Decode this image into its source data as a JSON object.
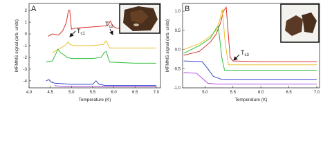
{
  "chart_data": [
    {
      "type": "line",
      "panel_label": "A",
      "xlabel": "Temperature (K)",
      "ylabel": "MFMMS signal (arb. units)",
      "xlim": [
        4.0,
        7.1
      ],
      "ylim": [
        -4.6,
        2.6
      ],
      "xticks": [
        {
          "value": 4.0,
          "label": "4.0"
        },
        {
          "value": 4.5,
          "label": "4.5"
        },
        {
          "value": 5.0,
          "label": "5.0"
        },
        {
          "value": 5.5,
          "label": "5.5"
        },
        {
          "value": 6.0,
          "label": "6.0"
        },
        {
          "value": 6.5,
          "label": "6.5"
        },
        {
          "value": 7.0,
          "label": "7.0"
        }
      ],
      "yticks": [
        -4,
        -3,
        -2,
        -1,
        0,
        1,
        2
      ],
      "annotations": [
        {
          "text": "T",
          "sub": "c1"
        },
        {
          "text": "T",
          "sub": "c2"
        }
      ],
      "series": [
        {
          "color": "#d9322b",
          "x": [
            4.45,
            4.55,
            4.7,
            4.8,
            4.88,
            4.93,
            4.96,
            5.0,
            5.1,
            5.5,
            5.85,
            5.92,
            5.97,
            6.05,
            6.5,
            7.0
          ],
          "values": [
            -0.2,
            0.0,
            -0.1,
            0.3,
            1.0,
            2.0,
            2.0,
            0.4,
            0.5,
            0.6,
            0.7,
            1.1,
            0.7,
            0.5,
            0.5,
            0.5
          ]
        },
        {
          "color": "#e8c02a",
          "x": [
            4.55,
            4.7,
            4.85,
            4.92,
            4.97,
            5.05,
            5.5,
            5.75,
            5.82,
            5.9,
            6.5,
            7.0
          ],
          "values": [
            -1.6,
            -1.3,
            -1.0,
            -0.7,
            -0.9,
            -1.0,
            -1.0,
            -0.9,
            -0.6,
            -1.2,
            -1.2,
            -1.2
          ]
        },
        {
          "color": "#2fbf3a",
          "x": [
            4.4,
            4.55,
            4.62,
            4.68,
            4.75,
            4.9,
            5.0,
            5.5,
            5.7,
            5.77,
            5.82,
            5.9,
            6.5,
            7.0
          ],
          "values": [
            -2.4,
            -2.3,
            -1.8,
            -1.3,
            -1.6,
            -2.0,
            -2.1,
            -2.1,
            -2.0,
            -1.6,
            -1.5,
            -2.4,
            -2.5,
            -2.5
          ]
        },
        {
          "color": "#3346c8",
          "x": [
            4.4,
            4.47,
            4.52,
            4.6,
            5.0,
            5.5,
            5.58,
            5.65,
            5.8,
            7.0
          ],
          "values": [
            -4.0,
            -3.9,
            -4.1,
            -4.2,
            -4.3,
            -4.3,
            -4.0,
            -4.3,
            -4.4,
            -4.4
          ]
        },
        {
          "color": "#b04ad8",
          "x": [
            4.6,
            4.8,
            5.5,
            7.0
          ],
          "values": [
            -4.4,
            -4.5,
            -4.5,
            -4.5
          ]
        }
      ]
    },
    {
      "type": "line",
      "panel_label": "B",
      "xlabel": "Temperature (K)",
      "ylabel": "MFMMS signal (arb. units)",
      "xlim": [
        4.6,
        7.05
      ],
      "ylim": [
        -1.0,
        1.2
      ],
      "xticks": [
        {
          "value": 5.0,
          "label": "5.0"
        },
        {
          "value": 5.5,
          "label": "5.5"
        },
        {
          "value": 6.0,
          "label": "6.0"
        },
        {
          "value": 6.5,
          "label": "6.5"
        },
        {
          "value": 7.0,
          "label": "7.0"
        }
      ],
      "yticks": [
        {
          "value": -1.0,
          "label": "-1.0"
        },
        {
          "value": -0.5,
          "label": "-0.5"
        },
        {
          "value": 0.0,
          "label": "0.0"
        },
        {
          "value": 0.5,
          "label": "0.5"
        },
        {
          "value": 1.0,
          "label": "1.0"
        }
      ],
      "annotations": [
        {
          "text": "T",
          "sub": "c3"
        }
      ],
      "series": [
        {
          "color": "#d9322b",
          "x": [
            4.62,
            4.9,
            5.1,
            5.2,
            5.28,
            5.33,
            5.38,
            5.45,
            5.5,
            6.0,
            7.0
          ],
          "values": [
            -0.15,
            -0.05,
            0.2,
            0.4,
            0.7,
            1.0,
            1.1,
            -0.2,
            -0.3,
            -0.32,
            -0.32
          ]
        },
        {
          "color": "#e8c02a",
          "x": [
            4.62,
            4.9,
            5.1,
            5.2,
            5.27,
            5.31,
            5.36,
            5.42,
            7.0
          ],
          "values": [
            0.0,
            0.15,
            0.35,
            0.5,
            0.8,
            1.05,
            0.2,
            -0.4,
            -0.4
          ]
        },
        {
          "color": "#2fbf3a",
          "x": [
            4.62,
            4.9,
            5.1,
            5.2,
            5.24,
            5.3,
            5.35,
            7.0
          ],
          "values": [
            -0.1,
            0.1,
            0.3,
            0.55,
            0.6,
            -0.2,
            -0.54,
            -0.54
          ]
        },
        {
          "color": "#3346c8",
          "x": [
            4.62,
            4.95,
            5.05,
            5.15,
            5.3,
            7.0
          ],
          "values": [
            -0.3,
            -0.32,
            -0.5,
            -0.7,
            -0.78,
            -0.78
          ]
        },
        {
          "color": "#b04ad8",
          "x": [
            4.62,
            4.85,
            4.95,
            5.05,
            5.2,
            7.0
          ],
          "values": [
            -0.6,
            -0.62,
            -0.75,
            -0.88,
            -0.9,
            -0.9
          ]
        }
      ]
    }
  ]
}
